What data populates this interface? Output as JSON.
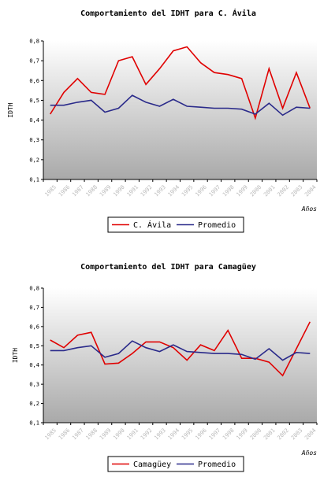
{
  "chart_data": [
    {
      "type": "line",
      "title": "Comportamiento del IDHT para C. Ávila",
      "ylabel": "IDTH",
      "xlabel": "Años",
      "ylim": [
        0.1,
        0.8
      ],
      "yticks": [
        "0,1",
        "0,2",
        "0,3",
        "0,4",
        "0,5",
        "0,6",
        "0,7",
        "0,8"
      ],
      "categories": [
        "1985",
        "1986",
        "1987",
        "1988",
        "1989",
        "1990",
        "1991",
        "1992",
        "1993",
        "1994",
        "1995",
        "1996",
        "1997",
        "1998",
        "1999",
        "2000",
        "2001",
        "2002",
        "2003",
        "2004"
      ],
      "grid": false,
      "legend_position": "bottom",
      "series": [
        {
          "name": "C. Ávila",
          "color": "#e00000",
          "values": [
            0.43,
            0.54,
            0.61,
            0.54,
            0.53,
            0.7,
            0.72,
            0.58,
            0.66,
            0.75,
            0.77,
            0.69,
            0.64,
            0.63,
            0.61,
            0.41,
            0.66,
            0.46,
            0.64,
            0.46
          ]
        },
        {
          "name": "Promedio",
          "color": "#2a2a8a",
          "values": [
            0.475,
            0.475,
            0.49,
            0.5,
            0.44,
            0.46,
            0.525,
            0.49,
            0.47,
            0.505,
            0.47,
            0.465,
            0.46,
            0.46,
            0.455,
            0.43,
            0.485,
            0.425,
            0.465,
            0.46
          ]
        }
      ]
    },
    {
      "type": "line",
      "title": "Comportamiento del IDHT para Camagüey",
      "ylabel": "IDTH",
      "xlabel": "Años",
      "ylim": [
        0.1,
        0.8
      ],
      "yticks": [
        "0,1",
        "0,2",
        "0,3",
        "0,4",
        "0,5",
        "0,6",
        "0,7",
        "0,8"
      ],
      "categories": [
        "1985",
        "1986",
        "1987",
        "1988",
        "1989",
        "1990",
        "1991",
        "1992",
        "1993",
        "1994",
        "1995",
        "1996",
        "1997",
        "1998",
        "1999",
        "2000",
        "2001",
        "2002",
        "2003",
        "2004"
      ],
      "grid": false,
      "legend_position": "bottom",
      "series": [
        {
          "name": "Camagüey",
          "color": "#e00000",
          "values": [
            0.53,
            0.49,
            0.555,
            0.57,
            0.405,
            0.41,
            0.46,
            0.52,
            0.52,
            0.49,
            0.425,
            0.505,
            0.475,
            0.58,
            0.435,
            0.435,
            0.415,
            0.345,
            0.485,
            0.625
          ]
        },
        {
          "name": "Promedio",
          "color": "#2a2a8a",
          "values": [
            0.475,
            0.475,
            0.49,
            0.5,
            0.44,
            0.46,
            0.525,
            0.49,
            0.47,
            0.505,
            0.47,
            0.465,
            0.46,
            0.46,
            0.455,
            0.43,
            0.485,
            0.425,
            0.465,
            0.46
          ]
        }
      ]
    }
  ]
}
